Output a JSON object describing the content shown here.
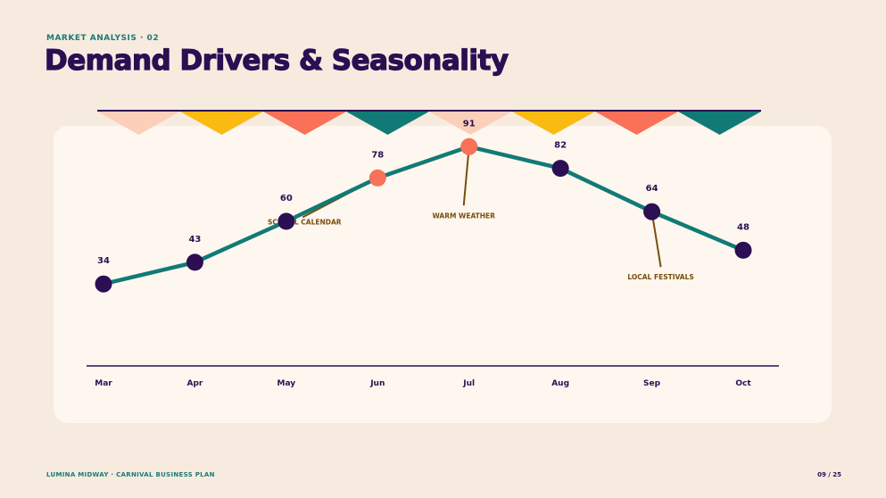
{
  "header": {
    "eyebrow": "MARKET ANALYSIS · 02",
    "title": "Demand Drivers & Seasonality"
  },
  "footer": {
    "left": "LUMINA MIDWAY · CARNIVAL BUSINESS PLAN",
    "page": "09 / 25"
  },
  "colors": {
    "navy": "#2b0f52",
    "teal": "#127a76",
    "coral": "#f87158",
    "peach": "#fccfba",
    "gold": "#fbba12",
    "callout": "#7a4e0c"
  },
  "bunting": [
    "peach",
    "gold",
    "coral",
    "teal",
    "peach",
    "gold",
    "coral",
    "teal"
  ],
  "chart_data": {
    "type": "line",
    "categories": [
      "Mar",
      "Apr",
      "May",
      "Jun",
      "Jul",
      "Aug",
      "Sep",
      "Oct"
    ],
    "values": [
      34,
      43,
      60,
      78,
      91,
      82,
      64,
      48
    ],
    "highlighted": [
      "Jun",
      "Jul"
    ],
    "ylim": [
      0,
      100
    ],
    "grid": false,
    "annotations": [
      {
        "label": "SCHOOL CALENDAR",
        "category": "Jun"
      },
      {
        "label": "WARM WEATHER",
        "category": "Jul"
      },
      {
        "label": "LOCAL FESTIVALS",
        "category": "Sep"
      }
    ]
  }
}
